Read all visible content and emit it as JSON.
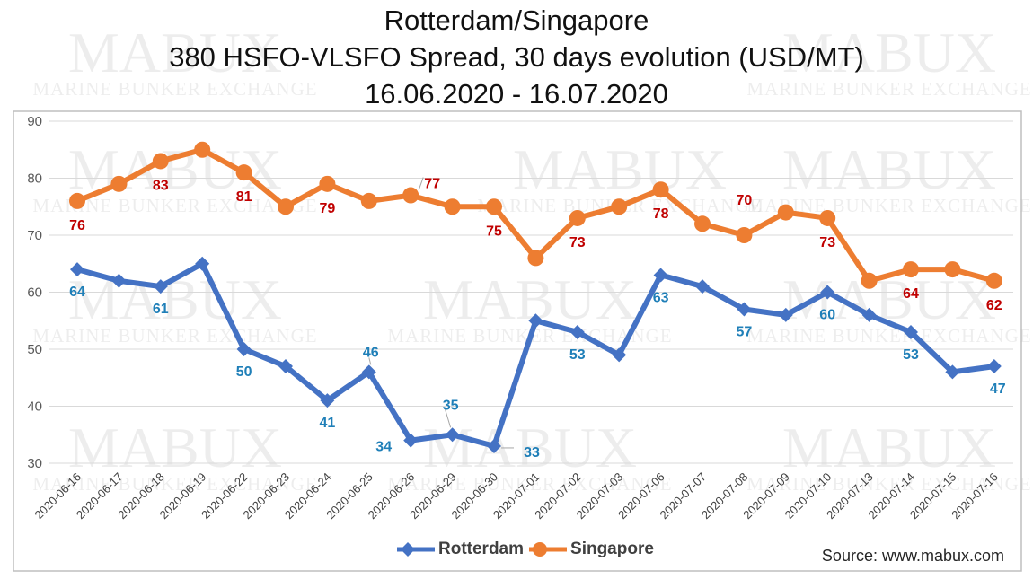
{
  "title_lines": [
    "Rotterdam/Singapore",
    "380 HSFO-VLSFO Spread, 30 days evolution (USD/MT)",
    "16.06.2020 - 16.07.2020"
  ],
  "source": "Source: www.mabux.com",
  "watermark": {
    "brand": "MABUX",
    "tagline": "MARINE BUNKER EXCHANGE"
  },
  "colors": {
    "rotterdam": "#4472c4",
    "singapore": "#ed7d31",
    "rotterdam_label": "#1f7fb8",
    "singapore_label": "#c00000",
    "grid": "#d9d9d9"
  },
  "chart_data": {
    "type": "line",
    "title": "Rotterdam/Singapore 380 HSFO-VLSFO Spread, 30 days evolution (USD/MT) 16.06.2020 - 16.07.2020",
    "categories": [
      "2020-06-16",
      "2020-06-17",
      "2020-06-18",
      "2020-06-19",
      "2020-06-22",
      "2020-06-23",
      "2020-06-24",
      "2020-06-25",
      "2020-06-26",
      "2020-06-29",
      "2020-06-30",
      "2020-07-01",
      "2020-07-02",
      "2020-07-03",
      "2020-07-06",
      "2020-07-07",
      "2020-07-08",
      "2020-07-09",
      "2020-07-10",
      "2020-07-13",
      "2020-07-14",
      "2020-07-15",
      "2020-07-16"
    ],
    "ylim": [
      30,
      90
    ],
    "yticks": [
      30,
      40,
      50,
      60,
      70,
      80,
      90
    ],
    "grid": true,
    "legend": "bottom",
    "series": [
      {
        "name": "Rotterdam",
        "marker": "diamond",
        "values": [
          64,
          62,
          61,
          65,
          50,
          47,
          41,
          46,
          34,
          35,
          33,
          55,
          53,
          49,
          63,
          61,
          57,
          56,
          60,
          56,
          53,
          46,
          47
        ],
        "data_labels": [
          {
            "index": 0,
            "text": "64"
          },
          {
            "index": 2,
            "text": "61"
          },
          {
            "index": 4,
            "text": "50"
          },
          {
            "index": 6,
            "text": "41"
          },
          {
            "index": 7,
            "text": "46"
          },
          {
            "index": 8,
            "text": "34"
          },
          {
            "index": 9,
            "text": "35"
          },
          {
            "index": 10,
            "text": "33"
          },
          {
            "index": 12,
            "text": "53"
          },
          {
            "index": 14,
            "text": "63"
          },
          {
            "index": 16,
            "text": "57"
          },
          {
            "index": 18,
            "text": "60"
          },
          {
            "index": 20,
            "text": "53"
          },
          {
            "index": 22,
            "text": "47"
          }
        ]
      },
      {
        "name": "Singapore",
        "marker": "circle",
        "values": [
          76,
          79,
          83,
          85,
          81,
          75,
          79,
          76,
          77,
          75,
          75,
          66,
          73,
          75,
          78,
          72,
          70,
          74,
          73,
          62,
          64,
          64,
          62
        ],
        "data_labels": [
          {
            "index": 0,
            "text": "76"
          },
          {
            "index": 2,
            "text": "83"
          },
          {
            "index": 4,
            "text": "81"
          },
          {
            "index": 6,
            "text": "79"
          },
          {
            "index": 8,
            "text": "77"
          },
          {
            "index": 10,
            "text": "75"
          },
          {
            "index": 12,
            "text": "73"
          },
          {
            "index": 14,
            "text": "78"
          },
          {
            "index": 16,
            "text": "70"
          },
          {
            "index": 18,
            "text": "73"
          },
          {
            "index": 20,
            "text": "64"
          },
          {
            "index": 22,
            "text": "62"
          }
        ]
      }
    ]
  }
}
